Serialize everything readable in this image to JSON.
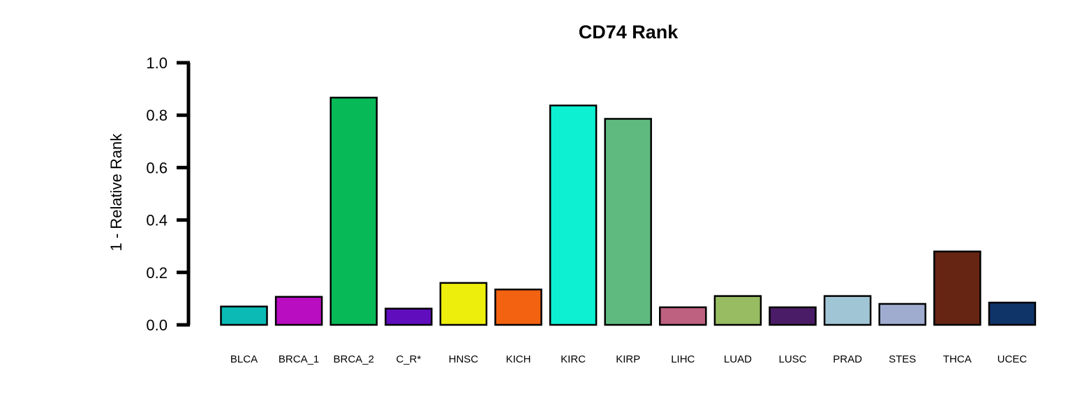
{
  "chart_data": {
    "type": "bar",
    "title": "CD74 Rank",
    "xlabel": "",
    "ylabel": "1 - Relative Rank",
    "ylim": [
      0,
      1
    ],
    "yticks": [
      "0.0",
      "0.2",
      "0.4",
      "0.6",
      "0.8",
      "1.0"
    ],
    "grid": false,
    "legend": "none",
    "categories": [
      "BLCA",
      "BRCA_1",
      "BRCA_2",
      "C_R*",
      "HNSC",
      "KICH",
      "KIRC",
      "KIRP",
      "LIHC",
      "LUAD",
      "LUSC",
      "PRAD",
      "STES",
      "THCA",
      "UCEC"
    ],
    "values": [
      0.07,
      0.107,
      0.867,
      0.062,
      0.16,
      0.135,
      0.837,
      0.786,
      0.067,
      0.11,
      0.067,
      0.11,
      0.08,
      0.28,
      0.085
    ],
    "colors": [
      "#0BBAB5",
      "#B80DC0",
      "#08BA57",
      "#600DBE",
      "#EEEE0D",
      "#F26210",
      "#0DF0D2",
      "#5FBA7F",
      "#BE6181",
      "#97BC62",
      "#4A1B66",
      "#A0C5D4",
      "#A0ACCF",
      "#662513",
      "#0F3468"
    ],
    "bar_outline": "#000000"
  }
}
